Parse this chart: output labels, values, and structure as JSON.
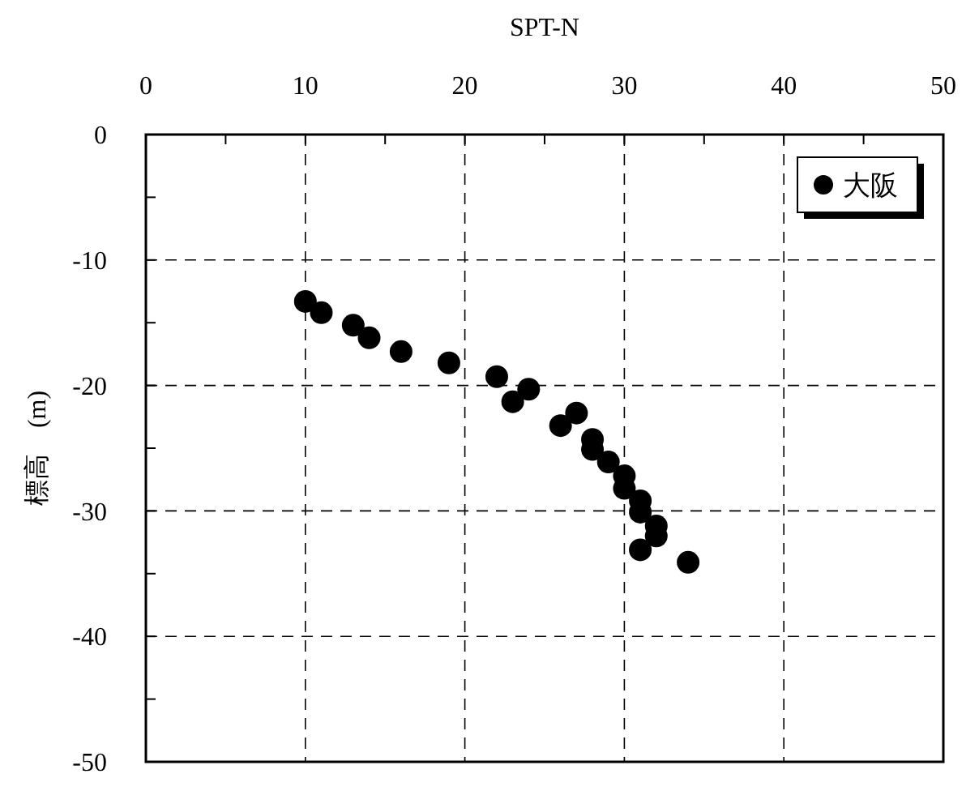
{
  "chart_data": {
    "type": "scatter",
    "xlabel": "SPT-N",
    "ylabel": "標高　(m)",
    "xlim": [
      0,
      50
    ],
    "xticks": [
      0,
      {
        "value": 5,
        "label": null
      },
      10,
      {
        "value": 15,
        "label": null
      },
      20,
      {
        "value": 25,
        "label": null
      },
      30,
      {
        "value": 35,
        "label": null
      },
      40,
      {
        "value": 45,
        "label": null
      },
      50
    ],
    "ylim": [
      -50,
      0
    ],
    "yticks": [
      0,
      {
        "value": -5,
        "label": null
      },
      -10,
      {
        "value": -15,
        "label": null
      },
      -20,
      {
        "value": -25,
        "label": null
      },
      -30,
      {
        "value": -35,
        "label": null
      },
      -40,
      {
        "value": -45,
        "label": null
      },
      -50
    ],
    "grid": true,
    "legend": "top right",
    "marker": "circle",
    "series": [
      {
        "name": "大阪",
        "color": "#000000",
        "x": [
          10,
          11,
          13,
          14,
          16,
          19,
          22,
          23,
          24,
          26,
          27,
          28,
          28,
          29,
          30,
          30,
          31,
          31,
          32,
          32,
          31,
          34
        ],
        "values": [
          -13.3,
          -14.2,
          -15.2,
          -16.2,
          -17.3,
          -18.2,
          -19.3,
          -21.3,
          -20.3,
          -23.2,
          -22.2,
          -24.3,
          -25.1,
          -26.1,
          -27.2,
          -28.2,
          -29.2,
          -30.1,
          -31.2,
          -32.0,
          -33.1,
          -34.1
        ]
      }
    ]
  }
}
